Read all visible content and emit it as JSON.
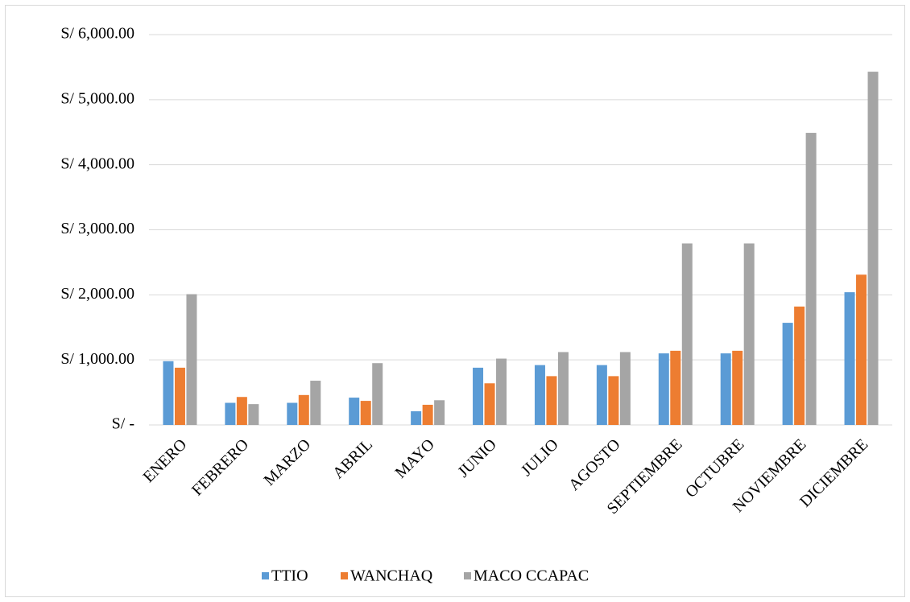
{
  "chart_data": {
    "type": "bar",
    "categories": [
      "ENERO",
      "FEBRERO",
      "MARZO",
      "ABRIL",
      "MAYO",
      "JUNIO",
      "JULIO",
      "AGOSTO",
      "SEPTIEMBRE",
      "OCTUBRE",
      "NOVIEMBRE",
      "DICIEMBRE"
    ],
    "series": [
      {
        "name": "TTIO",
        "color": "#5b9bd5",
        "values": [
          980,
          340,
          340,
          420,
          210,
          880,
          920,
          920,
          1100,
          1100,
          1570,
          2040
        ]
      },
      {
        "name": "WANCHAQ",
        "color": "#ed7d31",
        "values": [
          880,
          430,
          460,
          370,
          310,
          640,
          750,
          750,
          1140,
          1140,
          1820,
          2310
        ]
      },
      {
        "name": "MACO CCAPAC",
        "color": "#a5a5a5",
        "values": [
          2010,
          320,
          680,
          950,
          380,
          1020,
          1120,
          1120,
          2790,
          2790,
          4490,
          5430
        ]
      }
    ],
    "ylim": [
      0,
      6000
    ],
    "yticks": [
      {
        "value": 0,
        "label": "S/ -"
      },
      {
        "value": 1000,
        "label": "S/ 1,000.00"
      },
      {
        "value": 2000,
        "label": "S/ 2,000.00"
      },
      {
        "value": 3000,
        "label": "S/ 3,000.00"
      },
      {
        "value": 4000,
        "label": "S/ 4,000.00"
      },
      {
        "value": 5000,
        "label": "S/ 5,000.00"
      },
      {
        "value": 6000,
        "label": "S/ 6,000.00"
      }
    ],
    "grid": true,
    "legend": "bottom"
  }
}
